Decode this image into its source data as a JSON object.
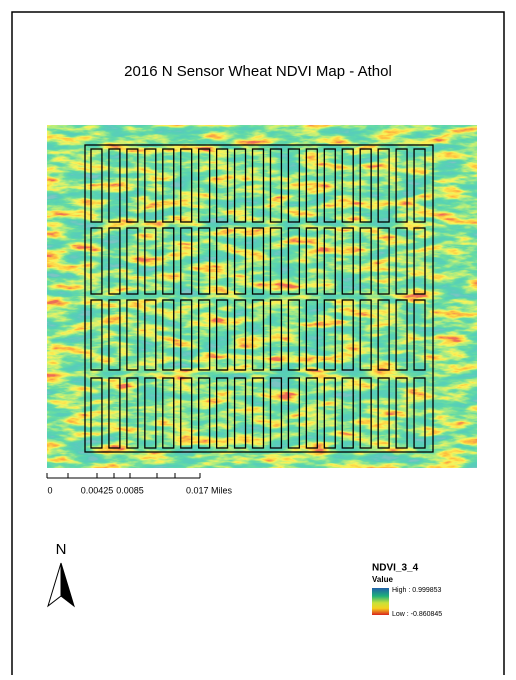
{
  "title": "2016 N Sensor Wheat NDVI Map - Athol",
  "scale_bar": {
    "labels": [
      "0",
      "0.00425",
      "0.0085",
      "0.017 Miles"
    ]
  },
  "north_arrow": {
    "label": "N"
  },
  "legend": {
    "title": "NDVI_3_4",
    "subtitle": "Value",
    "high": "High : 0.999853",
    "low": "Low : -0.860845"
  }
}
